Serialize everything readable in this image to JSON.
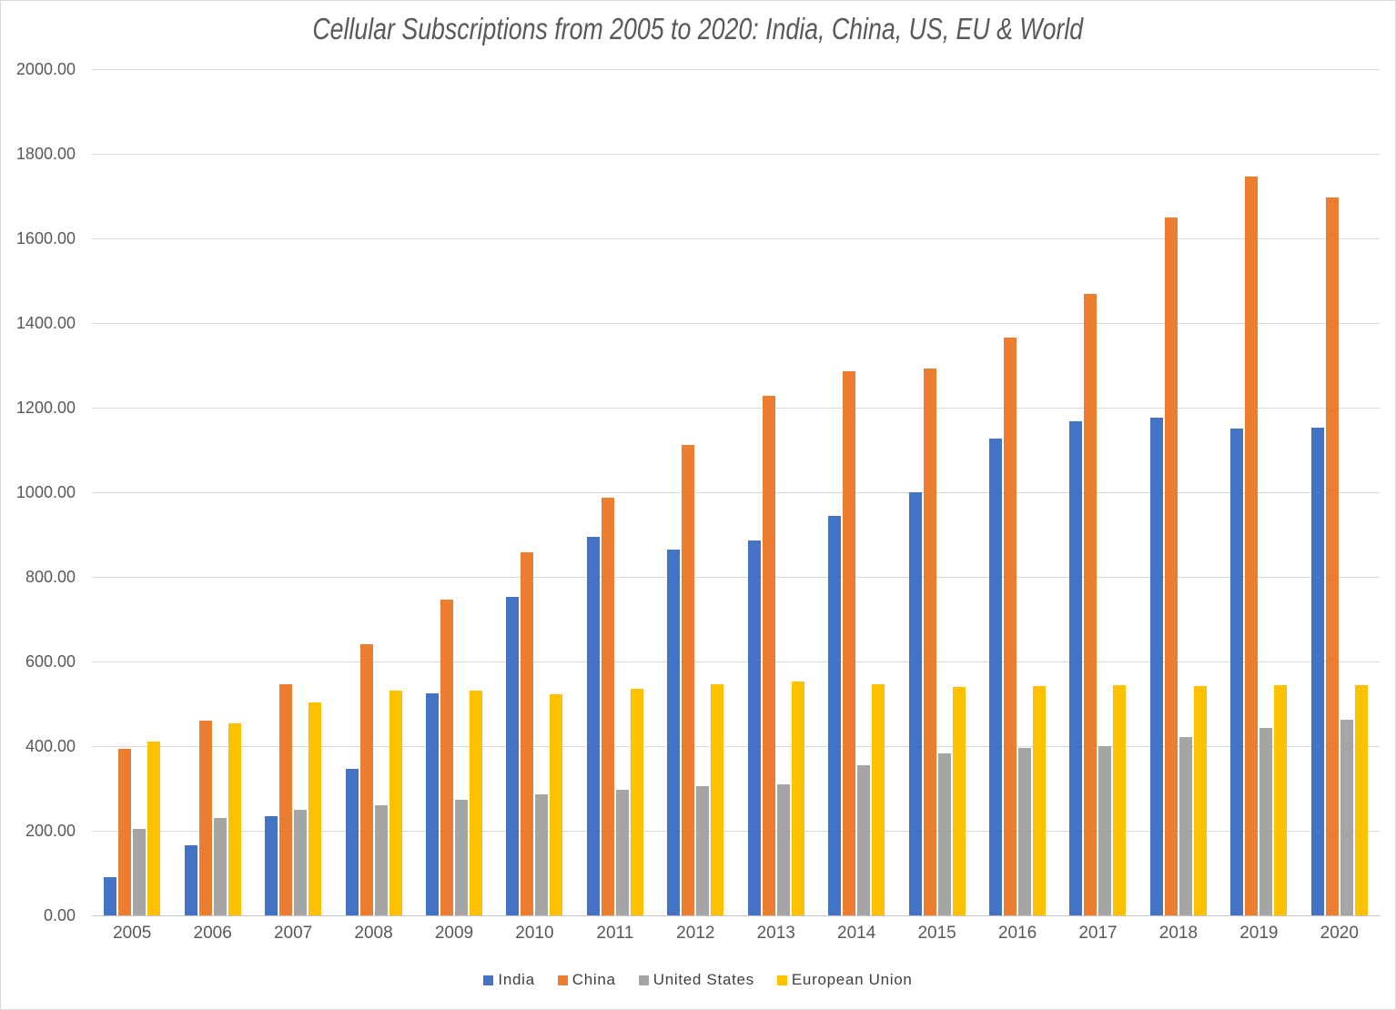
{
  "chart_data": {
    "type": "bar",
    "title": "Cellular Subscriptions from 2005 to 2020: India, China, US, EU & World",
    "categories": [
      "2005",
      "2006",
      "2007",
      "2008",
      "2009",
      "2010",
      "2011",
      "2012",
      "2013",
      "2014",
      "2015",
      "2016",
      "2017",
      "2018",
      "2019",
      "2020"
    ],
    "series": [
      {
        "name": "India",
        "color": "#4472C4",
        "values": [
          90.14,
          166.05,
          233.62,
          346.89,
          525.09,
          752.19,
          893.86,
          864.72,
          886.3,
          944.01,
          1001.06,
          1127.81,
          1168.9,
          1176.02,
          1151.48,
          1153.71
        ]
      },
      {
        "name": "China",
        "color": "#ED7D31",
        "values": [
          393.41,
          461.06,
          547.31,
          641.25,
          747.21,
          859.0,
          986.25,
          1112.15,
          1229.11,
          1286.09,
          1291.98,
          1364.93,
          1469.88,
          1649.3,
          1746.24,
          1696.36
        ]
      },
      {
        "name": "United States",
        "color": "#A5A5A5",
        "values": [
          203.7,
          229.6,
          249.3,
          261.3,
          274.3,
          285.1,
          297.4,
          304.8,
          310.7,
          355.5,
          382.07,
          396.0,
          400.2,
          422.0,
          442.46,
          461.88
        ]
      },
      {
        "name": "European Union",
        "color": "#FFC000",
        "values": [
          410.9,
          452.8,
          502.7,
          530.7,
          530.6,
          521.9,
          535.1,
          546.2,
          551.9,
          546.4,
          539.0,
          541.3,
          543.8,
          542.9,
          544.2,
          543.4
        ]
      }
    ],
    "xlabel": "",
    "ylabel": "",
    "ylim": [
      0,
      2000
    ],
    "y_tick_step": 200,
    "y_tick_labels": [
      "2000.00",
      "1800.00",
      "1600.00",
      "1400.00",
      "1200.00",
      "1000.00",
      "800.00",
      "600.00",
      "400.00",
      "200.00",
      "0.00"
    ],
    "grid": true,
    "legend_position": "bottom",
    "legend_entries": [
      "India",
      "China",
      "United States",
      "European Union"
    ],
    "colors": {
      "gridline": "#d9d9d9",
      "axis_line": "#c6c6c6",
      "tick_text": "#595959",
      "title_text": "#595959",
      "legend_text": "#404040",
      "chart_border": "#d9d9d9",
      "background": "#ffffff"
    }
  }
}
